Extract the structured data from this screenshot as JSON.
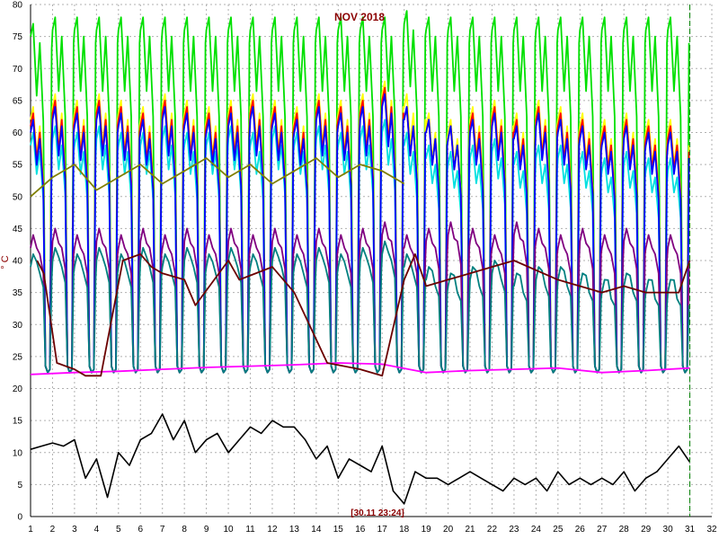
{
  "chart_data": {
    "type": "line",
    "title": "NOV 2018",
    "ylabel": "° C",
    "cursor_label": "[30.11 23:24]",
    "xlim": [
      1,
      32
    ],
    "ylim": [
      0,
      80
    ],
    "x_ticks": [
      "1",
      "2",
      "3",
      "4",
      "5",
      "6",
      "7",
      "8",
      "9",
      "10",
      "11",
      "12",
      "13",
      "14",
      "15",
      "16",
      "17",
      "18",
      "19",
      "20",
      "21",
      "22",
      "23",
      "24",
      "25",
      "26",
      "27",
      "28",
      "29",
      "30",
      "31",
      "32"
    ],
    "y_ticks": [
      "0",
      "5",
      "10",
      "15",
      "20",
      "25",
      "30",
      "35",
      "40",
      "45",
      "50",
      "55",
      "60",
      "65",
      "70",
      "75",
      "80"
    ],
    "grid": true,
    "cursor_x": 31,
    "series": [
      {
        "color": "#00e000",
        "kind": "cycle",
        "baseline": 22.5,
        "peaks": [
          77,
          78,
          78,
          78,
          78,
          78,
          78,
          78,
          78,
          78,
          78,
          78,
          78,
          78,
          78,
          78,
          78,
          79,
          78,
          78,
          78,
          78,
          78,
          78,
          78,
          78,
          78,
          78,
          78,
          78
        ]
      },
      {
        "color": "#ffff00",
        "kind": "cycle",
        "baseline": 22.5,
        "peaks": [
          64,
          66,
          65,
          66,
          65,
          64,
          66,
          65,
          64,
          65,
          66,
          65,
          64,
          66,
          65,
          66,
          68,
          66,
          63,
          62,
          64,
          65,
          63,
          65,
          64,
          63,
          62,
          63,
          62,
          62
        ]
      },
      {
        "color": "#ff0000",
        "kind": "cycle",
        "baseline": 22.5,
        "peaks": [
          63,
          65,
          64,
          65,
          64,
          63,
          65,
          64,
          63,
          64,
          65,
          64,
          63,
          65,
          64,
          65,
          67,
          64,
          62,
          61,
          63,
          64,
          62,
          64,
          63,
          62,
          61,
          62,
          61,
          61
        ]
      },
      {
        "color": "#00e0e0",
        "kind": "cycle",
        "baseline": 22.5,
        "peaks": [
          60,
          61,
          60,
          61,
          60,
          60,
          61,
          60,
          60,
          61,
          60,
          61,
          60,
          61,
          60,
          61,
          62,
          60,
          58,
          57,
          58,
          59,
          57,
          58,
          58,
          57,
          56,
          57,
          56,
          56
        ]
      },
      {
        "color": "#0000ff",
        "kind": "cycle",
        "baseline": 22.5,
        "peaks": [
          62,
          64,
          63,
          64,
          63,
          62,
          64,
          63,
          62,
          63,
          64,
          63,
          62,
          64,
          63,
          64,
          66,
          64,
          62,
          61,
          62,
          63,
          61,
          63,
          62,
          61,
          60,
          61,
          60,
          60
        ]
      },
      {
        "color": "#808000",
        "kind": "flat",
        "values": [
          50,
          53,
          55,
          51,
          53,
          55,
          52,
          54,
          56,
          53,
          55,
          52,
          54,
          56,
          53,
          55,
          54,
          52
        ]
      },
      {
        "color": "#800080",
        "kind": "cycle",
        "baseline": 22.5,
        "peaks": [
          44,
          45,
          44,
          45,
          44,
          45,
          44,
          45,
          44,
          45,
          44,
          45,
          44,
          45,
          44,
          45,
          46,
          44,
          45,
          46,
          45,
          44,
          46,
          45,
          44,
          45,
          44,
          45,
          44,
          44
        ]
      },
      {
        "color": "#008080",
        "kind": "cycle",
        "baseline": 22.5,
        "peaks": [
          41,
          42,
          41,
          42,
          41,
          42,
          41,
          42,
          41,
          42,
          41,
          42,
          41,
          42,
          41,
          42,
          43,
          41,
          39,
          38,
          39,
          40,
          38,
          39,
          39,
          38,
          37,
          38,
          37,
          37
        ]
      },
      {
        "color": "#ff00ff",
        "kind": "line",
        "x": [
          1,
          3,
          5,
          7,
          9,
          11,
          13,
          15,
          17,
          19,
          21,
          23,
          25,
          27,
          29,
          31
        ],
        "y": [
          22.2,
          22.5,
          22.7,
          23,
          23.3,
          23.5,
          23.7,
          24,
          23.8,
          22.5,
          22.8,
          23,
          23.2,
          22.5,
          22.8,
          23.2
        ]
      },
      {
        "color": "#6b0000",
        "kind": "line",
        "x": [
          1.3,
          1.6,
          2.2,
          3,
          3.5,
          4.2,
          5.2,
          6,
          6.5,
          7,
          8,
          8.5,
          10,
          10.5,
          12,
          13,
          14.5,
          16,
          17,
          18,
          18.5,
          19,
          21,
          22,
          23,
          25,
          26,
          27,
          28,
          29,
          30,
          30.5,
          31
        ],
        "y": [
          40,
          38,
          24,
          23,
          22,
          22,
          40,
          41,
          39,
          38,
          37,
          33,
          40,
          37,
          39,
          35,
          24,
          23,
          22,
          37,
          41,
          36,
          38,
          39,
          40,
          37,
          36,
          35,
          36,
          35,
          35,
          35,
          40
        ]
      },
      {
        "color": "#000000",
        "kind": "line",
        "x": [
          1,
          1.5,
          2,
          2.5,
          3,
          3.5,
          4,
          4.5,
          5,
          5.5,
          6,
          6.5,
          7,
          7.5,
          8,
          8.5,
          9,
          9.5,
          10,
          10.5,
          11,
          11.5,
          12,
          12.5,
          13,
          13.5,
          14,
          14.5,
          15,
          15.5,
          16,
          16.5,
          17,
          17.5,
          18,
          18.5,
          19,
          19.5,
          20,
          20.5,
          21,
          21.5,
          22,
          22.5,
          23,
          23.5,
          24,
          24.5,
          25,
          25.5,
          26,
          26.5,
          27,
          27.5,
          28,
          28.5,
          29,
          29.5,
          30,
          30.5,
          31
        ],
        "y": [
          10.5,
          11,
          11.5,
          11,
          12,
          6,
          9,
          3,
          10,
          8,
          12,
          13,
          16,
          12,
          15,
          10,
          12,
          13,
          10,
          12,
          14,
          13,
          15,
          14,
          14,
          12,
          9,
          11,
          6,
          9,
          8,
          7,
          11,
          4,
          2,
          7,
          6,
          6,
          5,
          6,
          7,
          6,
          5,
          4,
          6,
          5,
          6,
          4,
          7,
          5,
          6,
          5,
          6,
          5,
          7,
          4,
          6,
          7,
          9,
          11,
          8.5
        ]
      }
    ]
  }
}
